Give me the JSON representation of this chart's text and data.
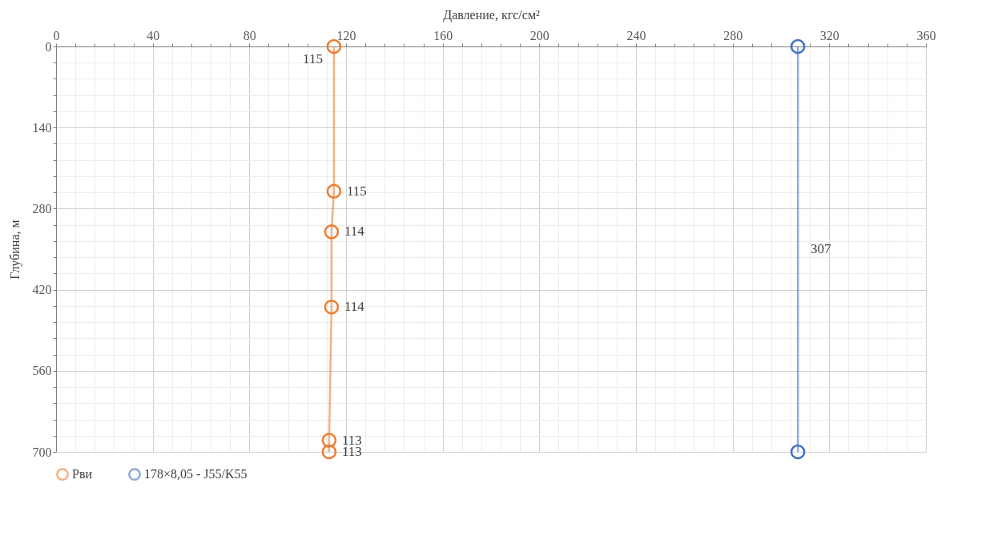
{
  "chart_data": {
    "type": "line",
    "xlabel": "Давление, кгс/см²",
    "ylabel": "Глубина, м",
    "xlim": [
      0,
      360
    ],
    "xticks": [
      0,
      {
        "value": 8,
        "label": null
      },
      {
        "value": 16,
        "label": null
      },
      {
        "value": 24,
        "label": null
      },
      {
        "value": 32,
        "label": null
      },
      40,
      {
        "value": 48,
        "label": null
      },
      {
        "value": 56,
        "label": null
      },
      {
        "value": 64,
        "label": null
      },
      {
        "value": 72,
        "label": null
      },
      80,
      {
        "value": 88,
        "label": null
      },
      {
        "value": 96,
        "label": null
      },
      {
        "value": 104,
        "label": null
      },
      {
        "value": 112,
        "label": null
      },
      120,
      {
        "value": 128,
        "label": null
      },
      {
        "value": 136,
        "label": null
      },
      {
        "value": 144,
        "label": null
      },
      {
        "value": 152,
        "label": null
      },
      160,
      {
        "value": 168,
        "label": null
      },
      {
        "value": 176,
        "label": null
      },
      {
        "value": 184,
        "label": null
      },
      {
        "value": 192,
        "label": null
      },
      200,
      {
        "value": 208,
        "label": null
      },
      {
        "value": 216,
        "label": null
      },
      {
        "value": 224,
        "label": null
      },
      {
        "value": 232,
        "label": null
      },
      240,
      {
        "value": 248,
        "label": null
      },
      {
        "value": 256,
        "label": null
      },
      {
        "value": 264,
        "label": null
      },
      {
        "value": 272,
        "label": null
      },
      280,
      {
        "value": 288,
        "label": null
      },
      {
        "value": 296,
        "label": null
      },
      {
        "value": 304,
        "label": null
      },
      {
        "value": 312,
        "label": null
      },
      320,
      {
        "value": 328,
        "label": null
      },
      {
        "value": 336,
        "label": null
      },
      {
        "value": 344,
        "label": null
      },
      {
        "value": 352,
        "label": null
      },
      360
    ],
    "ylim": [
      700,
      0
    ],
    "yticks": [
      0,
      {
        "value": 28,
        "label": null
      },
      {
        "value": 56,
        "label": null
      },
      {
        "value": 84,
        "label": null
      },
      {
        "value": 112,
        "label": null
      },
      140,
      {
        "value": 168,
        "label": null
      },
      {
        "value": 196,
        "label": null
      },
      {
        "value": 224,
        "label": null
      },
      {
        "value": 252,
        "label": null
      },
      280,
      {
        "value": 308,
        "label": null
      },
      {
        "value": 336,
        "label": null
      },
      {
        "value": 364,
        "label": null
      },
      {
        "value": 392,
        "label": null
      },
      420,
      {
        "value": 448,
        "label": null
      },
      {
        "value": 476,
        "label": null
      },
      {
        "value": 504,
        "label": null
      },
      {
        "value": 532,
        "label": null
      },
      560,
      {
        "value": 588,
        "label": null
      },
      {
        "value": 616,
        "label": null
      },
      {
        "value": 644,
        "label": null
      },
      {
        "value": 672,
        "label": null
      },
      700
    ],
    "grid": true,
    "legend": "bottom",
    "marker": "circle",
    "line_style": "solid",
    "series": [
      {
        "name": "Рви",
        "color": "#ed7d31",
        "x": [
          115,
          115,
          114,
          114,
          113,
          113
        ],
        "values": [
          0,
          250,
          320,
          450,
          680,
          700
        ]
      },
      {
        "name": "178×8,05 - J55/K55",
        "color": "#4472c4",
        "x": [
          307,
          307
        ],
        "values": [
          0,
          700
        ]
      }
    ],
    "annotations": [
      {
        "text": "115",
        "x": 115,
        "y": 0
      },
      {
        "text": "115",
        "x": 115,
        "y": 250
      },
      {
        "text": "114",
        "x": 114,
        "y": 320
      },
      {
        "text": "114",
        "x": 114,
        "y": 450
      },
      {
        "text": "113",
        "x": 113,
        "y": 680
      },
      {
        "text": "113",
        "x": 113,
        "y": 700
      },
      {
        "text": "307",
        "x": 307,
        "y": 350
      }
    ]
  }
}
